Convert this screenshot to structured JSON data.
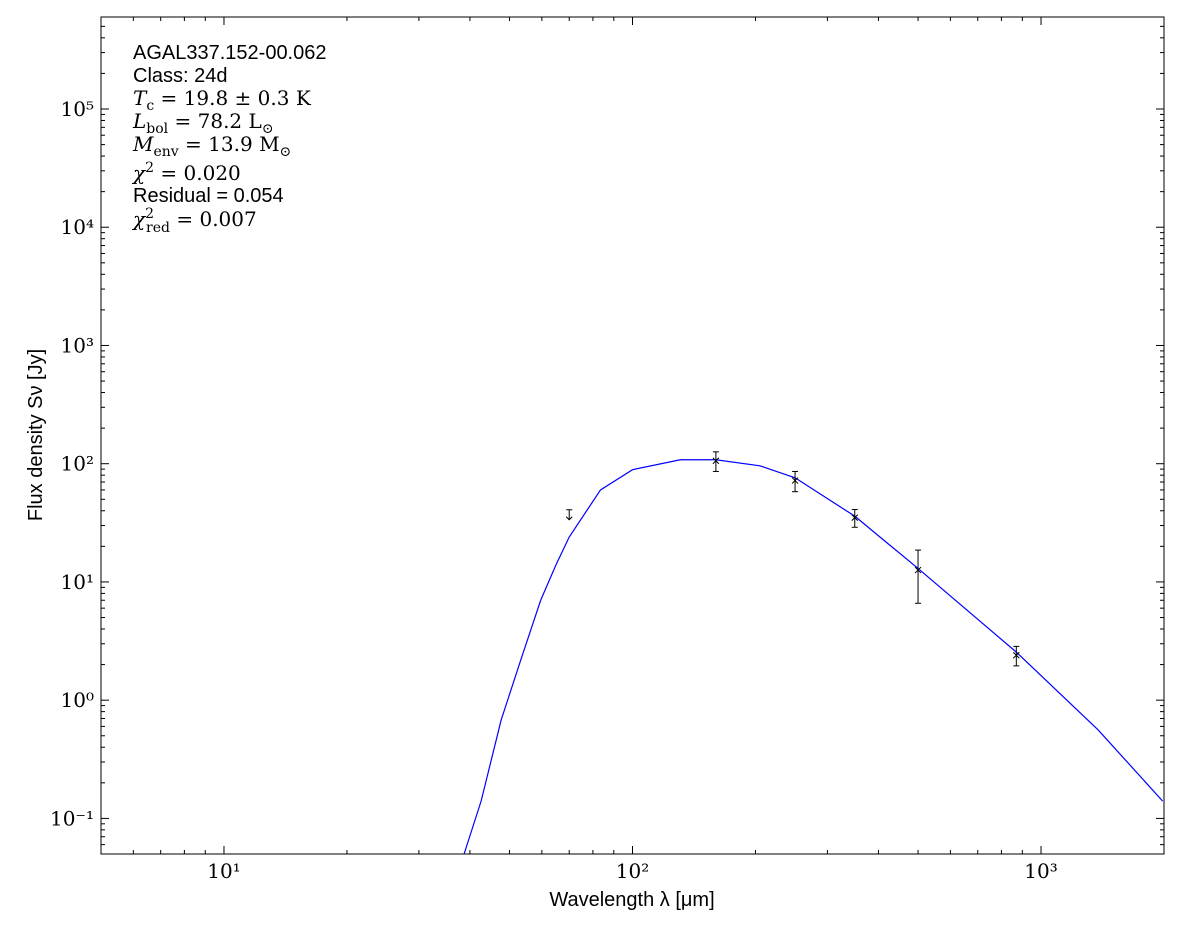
{
  "chart_data": {
    "type": "sed",
    "xlabel": "Wavelength λ [μm]",
    "ylabel": "Flux density Sν [Jy]",
    "xlog": true,
    "ylog": true,
    "minor_ticks": true,
    "xlim": [
      5,
      2000
    ],
    "ylim": [
      0.05,
      600000
    ],
    "xticks": [
      {
        "value": 10,
        "label": "10¹"
      },
      {
        "value": 100,
        "label": "10²"
      },
      {
        "value": 1000,
        "label": "10³"
      }
    ],
    "yticks": [
      {
        "value": 0.1,
        "label": "10⁻¹"
      },
      {
        "value": 1,
        "label": "10⁰"
      },
      {
        "value": 10,
        "label": "10¹"
      },
      {
        "value": 100,
        "label": "10²"
      },
      {
        "value": 1000,
        "label": "10³"
      },
      {
        "value": 10000,
        "label": "10⁴"
      },
      {
        "value": 100000,
        "label": "10⁵"
      }
    ],
    "annotations": [
      [
        {
          "t": "AGAL337.152-00.062",
          "s": "sans"
        }
      ],
      [
        {
          "t": "Class: 24d",
          "s": "sans"
        }
      ],
      [
        {
          "t": "T",
          "s": "it"
        },
        {
          "t": "c",
          "s": "sub"
        },
        {
          "t": " = 19.8 ± 0.3 K",
          "s": "rm"
        }
      ],
      [
        {
          "t": "L",
          "s": "it"
        },
        {
          "t": "bol",
          "s": "sub"
        },
        {
          "t": " = 78.2 L",
          "s": "rm"
        },
        {
          "t": "⊙",
          "s": "sub"
        }
      ],
      [
        {
          "t": "M",
          "s": "it"
        },
        {
          "t": "env",
          "s": "sub"
        },
        {
          "t": " = 13.9 M",
          "s": "rm"
        },
        {
          "t": "⊙",
          "s": "sub"
        }
      ],
      [
        {
          "t": "χ",
          "s": "it"
        },
        {
          "t": "2",
          "s": "sup"
        },
        {
          "t": " = 0.020",
          "s": "rm"
        }
      ],
      [
        {
          "t": "Residual = 0.054",
          "s": "sans"
        }
      ],
      [
        {
          "t": "χ",
          "s": "it"
        },
        {
          "t": "2",
          "s": "sup"
        },
        {
          "t": "red",
          "s": "subback"
        },
        {
          "t": " = 0.007",
          "s": "rm"
        }
      ]
    ],
    "model": {
      "color": "#0000ff",
      "x": [
        38.7,
        42.6,
        47.7,
        53.3,
        59.6,
        65,
        70,
        83.5,
        100,
        131,
        160,
        205,
        250,
        350,
        500,
        870,
        1380,
        1985
      ],
      "values": [
        0.05,
        0.14,
        0.68,
        2.2,
        7.0,
        14,
        24,
        60,
        89,
        108,
        108,
        96,
        76,
        36,
        13,
        2.55,
        0.56,
        0.14
      ]
    },
    "measurements": {
      "color": "#000000",
      "x": [
        160,
        250,
        350,
        500,
        870
      ],
      "values": [
        106,
        72,
        35,
        12.6,
        2.4
      ],
      "errors": [
        20,
        14,
        6,
        6,
        0.45
      ]
    },
    "upper_limits": {
      "color": "#000000",
      "x": [
        70
      ],
      "values": [
        37
      ]
    }
  }
}
